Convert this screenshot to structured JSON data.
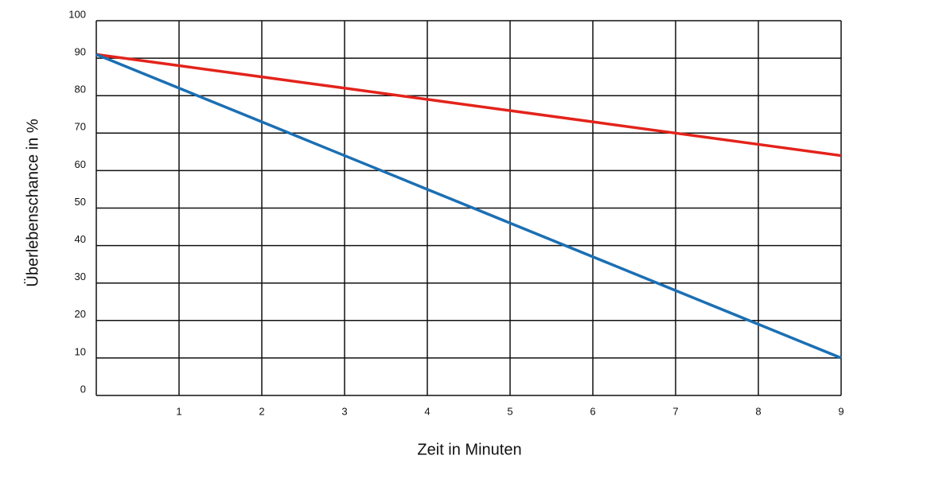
{
  "chart_data": {
    "type": "line",
    "x_label": "Zeit in Minuten",
    "y_label": "Überlebenschance in %",
    "x": [
      0,
      1,
      2,
      3,
      4,
      5,
      6,
      7,
      8,
      9
    ],
    "series": [
      {
        "color": "#e3231b",
        "values": [
          91,
          88,
          85,
          82,
          79,
          76,
          73,
          70,
          67,
          64
        ]
      },
      {
        "color": "#1b6fb3",
        "values": [
          91,
          82,
          73,
          64,
          55,
          46,
          37,
          28,
          19,
          10
        ]
      }
    ],
    "xlim": [
      0,
      9
    ],
    "xticks": [
      1,
      2,
      3,
      4,
      5,
      6,
      7,
      8,
      9
    ],
    "ylim": [
      0,
      100
    ],
    "yticks": [
      0,
      10,
      20,
      30,
      40,
      50,
      60,
      70,
      80,
      90,
      100
    ],
    "grid": true
  }
}
